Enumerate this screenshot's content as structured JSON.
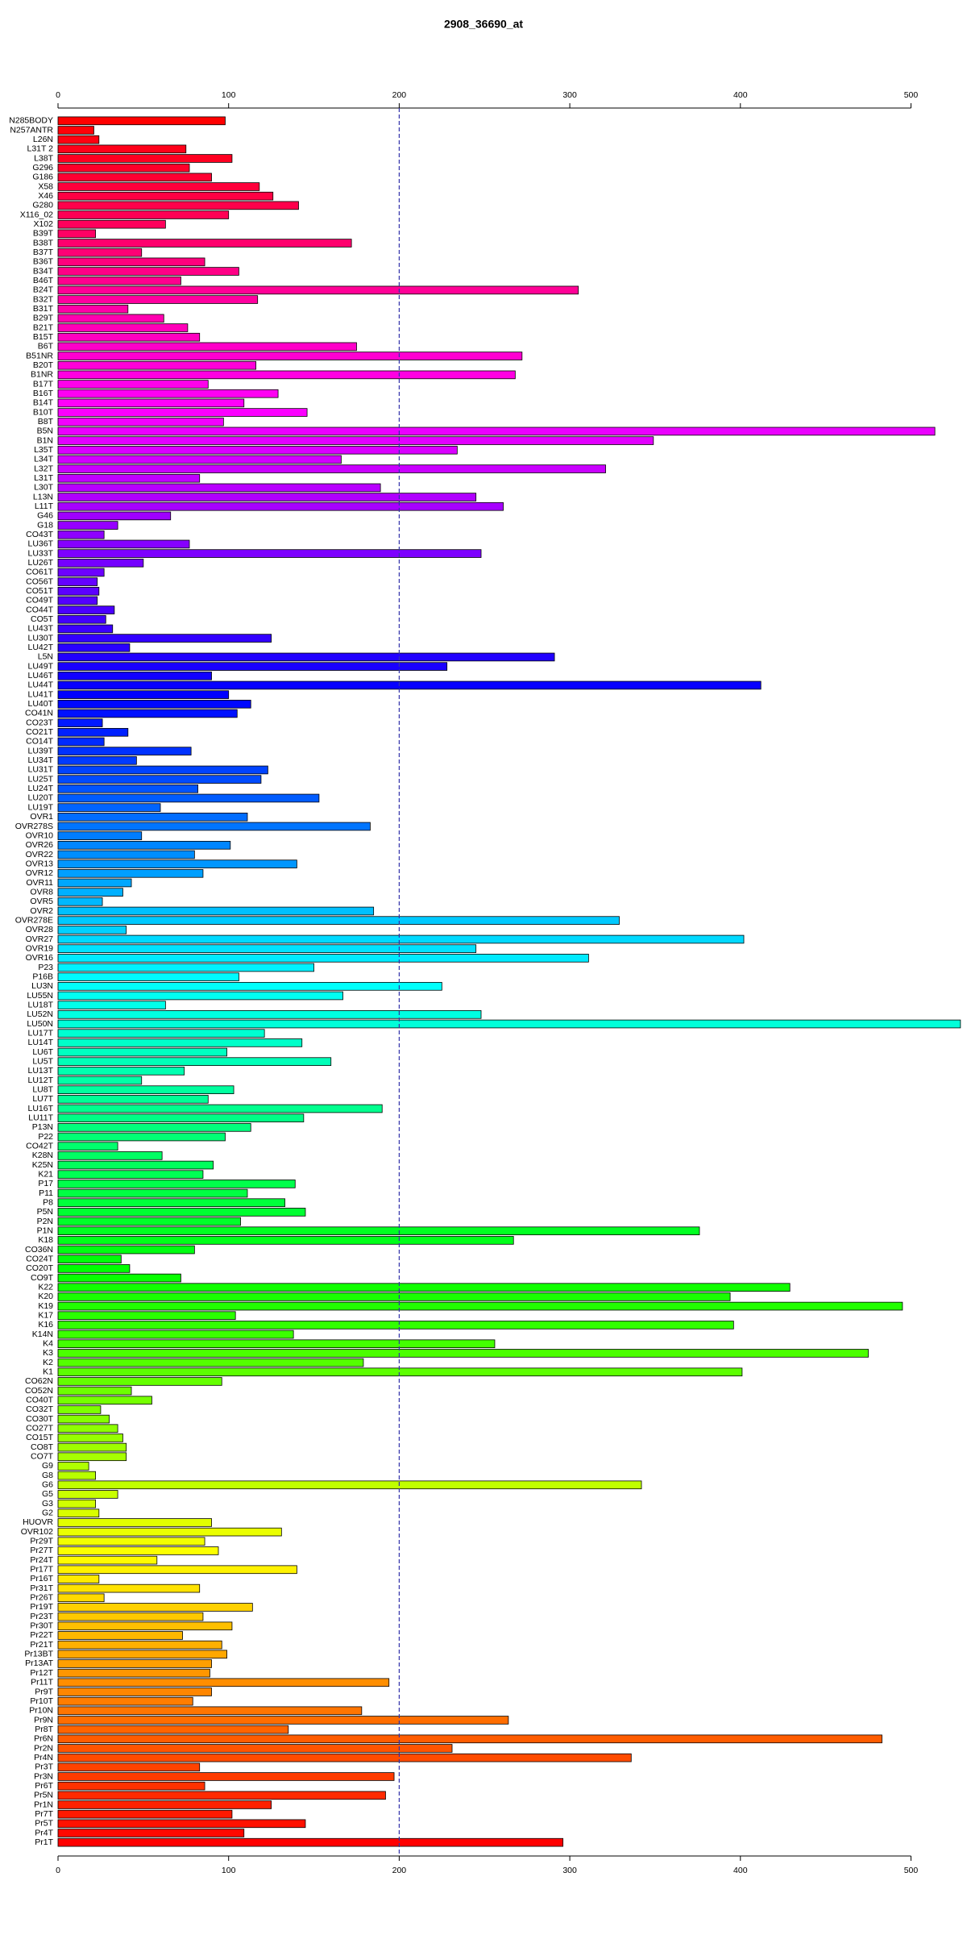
{
  "chart_data": {
    "type": "barh",
    "title": "2908_36690_at",
    "categories": [
      "N285BODY",
      "N257ANTR",
      "L26N",
      "L31T 2",
      "L38T",
      "G296",
      "G186",
      "X58",
      "X46",
      "G280",
      "X116_02",
      "X102",
      "B39T",
      "B38T",
      "B37T",
      "B36T",
      "B34T",
      "B46T",
      "B24T",
      "B32T",
      "B31T",
      "B29T",
      "B21T",
      "B15T",
      "B6T",
      "B51NR",
      "B20T",
      "B1NR",
      "B17T",
      "B16T",
      "B14T",
      "B10T",
      "B8T",
      "B5N",
      "B1N",
      "L35T",
      "L34T",
      "L32T",
      "L31T",
      "L30T",
      "L13N",
      "L11T",
      "G46",
      "G18",
      "CO43T",
      "LU36T",
      "LU33T",
      "LU26T",
      "CO61T",
      "CO56T",
      "CO51T",
      "CO49T",
      "CO44T",
      "CO5T",
      "LU43T",
      "LU30T",
      "LU42T",
      "L5N",
      "LU49T",
      "LU46T",
      "LU44T",
      "LU41T",
      "LU40T",
      "CO41N",
      "CO23T",
      "CO21T",
      "CO14T",
      "LU39T",
      "LU34T",
      "LU31T",
      "LU25T",
      "LU24T",
      "LU20T",
      "LU19T",
      "OVR1",
      "OVR278S",
      "OVR10",
      "OVR26",
      "OVR22",
      "OVR13",
      "OVR12",
      "OVR11",
      "OVR8",
      "OVR5",
      "OVR2",
      "OVR278E",
      "OVR28",
      "OVR27",
      "OVR19",
      "OVR16",
      "P23",
      "P16B",
      "LU3N",
      "LU55N",
      "LU18T",
      "LU52N",
      "LU50N",
      "LU17T",
      "LU14T",
      "LU6T",
      "LU5T",
      "LU13T",
      "LU12T",
      "LU8T",
      "LU7T",
      "LU16T",
      "LU11T",
      "P13N",
      "P22",
      "CO42T",
      "K28N",
      "K25N",
      "K21",
      "P17",
      "P11",
      "P8",
      "P5N",
      "P2N",
      "P1N",
      "K18",
      "CO36N",
      "CO24T",
      "CO20T",
      "CO9T",
      "K22",
      "K20",
      "K19",
      "K17",
      "K16",
      "K14N",
      "K4",
      "K3",
      "K2",
      "K1",
      "CO62N",
      "CO52N",
      "CO40T",
      "CO32T",
      "CO30T",
      "CO27T",
      "CO15T",
      "CO8T",
      "CO7T",
      "G9",
      "G8",
      "G6",
      "G5",
      "G3",
      "G2",
      "HUOVR",
      "OVR102",
      "Pr29T",
      "Pr27T",
      "Pr24T",
      "Pr17T",
      "Pr16T",
      "Pr31T",
      "Pr26T",
      "Pr19T",
      "Pr23T",
      "Pr30T",
      "Pr22T",
      "Pr21T",
      "Pr13BT",
      "Pr13AT",
      "Pr12T",
      "Pr11T",
      "Pr9T",
      "Pr10T",
      "Pr10N",
      "Pr9N",
      "Pr8T",
      "Pr6N",
      "Pr2N",
      "Pr4N",
      "Pr3T",
      "Pr3N",
      "Pr6T",
      "Pr5N",
      "Pr1N",
      "Pr7T",
      "Pr5T",
      "Pr4T",
      "Pr1T"
    ],
    "values": [
      98,
      21,
      24,
      75,
      102,
      77,
      90,
      118,
      126,
      141,
      100,
      63,
      22,
      172,
      49,
      86,
      106,
      72,
      305,
      117,
      41,
      62,
      76,
      83,
      175,
      272,
      116,
      268,
      88,
      129,
      109,
      146,
      97,
      514,
      349,
      234,
      166,
      321,
      83,
      189,
      245,
      261,
      66,
      35,
      27,
      77,
      248,
      50,
      27,
      23,
      24,
      23,
      33,
      28,
      32,
      125,
      42,
      291,
      228,
      90,
      412,
      100,
      113,
      105,
      26,
      41,
      27,
      78,
      46,
      123,
      119,
      82,
      153,
      60,
      111,
      183,
      49,
      101,
      80,
      140,
      85,
      43,
      38,
      26,
      185,
      329,
      40,
      402,
      245,
      311,
      150,
      106,
      225,
      167,
      63,
      248,
      529,
      121,
      143,
      99,
      160,
      74,
      49,
      103,
      88,
      190,
      144,
      113,
      98,
      35,
      61,
      91,
      85,
      139,
      111,
      133,
      145,
      107,
      376,
      267,
      80,
      37,
      42,
      72,
      429,
      394,
      495,
      104,
      396,
      138,
      256,
      475,
      179,
      401,
      96,
      43,
      55,
      25,
      30,
      35,
      38,
      40,
      40,
      18,
      22,
      342,
      35,
      22,
      24,
      90,
      131,
      86,
      94,
      58,
      140,
      24,
      83,
      27,
      114,
      85,
      102,
      73,
      96,
      99,
      90,
      89,
      194,
      90,
      79,
      178,
      264,
      135,
      483,
      231,
      336,
      83,
      197,
      86,
      192,
      125,
      102,
      145,
      109,
      296
    ],
    "palette": "rainbow",
    "xlim": [
      0,
      530
    ],
    "xticks": [
      0,
      100,
      200,
      300,
      400,
      500
    ],
    "reference_line": 200,
    "reference_color": "#3333aa"
  }
}
